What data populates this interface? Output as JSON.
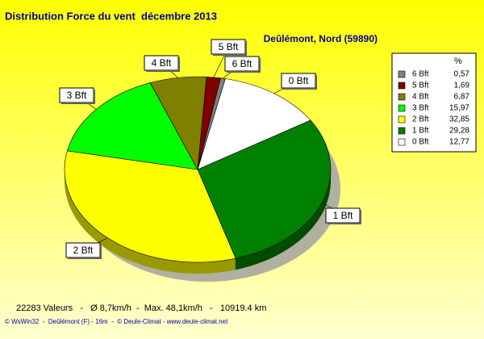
{
  "chart_data": {
    "type": "pie",
    "title": "Distribution Force du vent  décembre 2013",
    "subtitle": "Deûlémont, Nord (59890)",
    "legend_header": "%",
    "categories": [
      "0 Bft",
      "1 Bft",
      "2 Bft",
      "3 Bft",
      "4 Bft",
      "5 Bft",
      "6 Bft"
    ],
    "values": [
      12.77,
      29.28,
      32.85,
      15.97,
      6.87,
      1.69,
      0.57
    ],
    "value_labels": [
      "12,77",
      "29,28",
      "32,85",
      "15,97",
      "6,87",
      "1,69",
      "0,57"
    ],
    "colors": [
      "#ffffff",
      "#008000",
      "#ffff00",
      "#00ff00",
      "#808000",
      "#800000",
      "#808080"
    ],
    "footer": "22283 Valeurs   -   Ø 8,7km/h  -  Max. 48,1km/h   -   10919.4 km",
    "credits": "© WsWin32  -  Deûlémont (F) - 16m  -  © Deule-Climat - www.deule-climat.net"
  }
}
